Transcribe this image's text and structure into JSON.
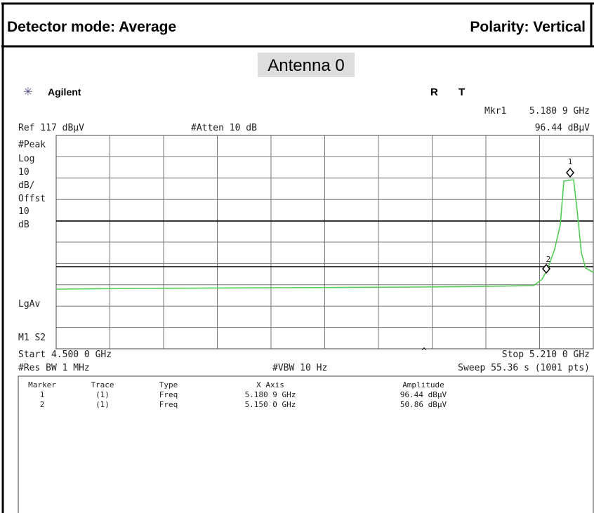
{
  "header": {
    "left": "Detector mode: Average",
    "right": "Polarity: Vertical"
  },
  "caption": "Antenna 0",
  "screen": {
    "brand": "Agilent",
    "status": [
      "R",
      "T"
    ],
    "marker_readout": {
      "label": "Mkr1",
      "freq": "5.180 9 GHz",
      "amplitude": "96.44 dBµV"
    },
    "ref": "Ref 117 dBµV",
    "atten": "#Atten 10 dB",
    "left_labels": [
      "#Peak",
      "Log",
      "10",
      "dB/",
      "Offst",
      "10",
      "dB",
      "LgAv",
      "M1 S2"
    ],
    "markers": [
      "1",
      "2"
    ],
    "start": "Start 4.500 0 GHz",
    "caret": "^",
    "stop": "Stop 5.210 0 GHz",
    "rbw": "#Res BW 1 MHz",
    "vbw": "#VBW 10 Hz",
    "sweep": "Sweep 55.36 s (1001 pts)"
  },
  "table": {
    "headers": [
      "Marker",
      "Trace",
      "Type",
      "X Axis",
      "Amplitude"
    ],
    "rows": [
      [
        "1",
        "(1)",
        "Freq",
        "5.180 9 GHz",
        "96.44 dBµV"
      ],
      [
        "2",
        "(1)",
        "Freq",
        "5.150 0 GHz",
        "50.86 dBµV"
      ]
    ]
  }
}
